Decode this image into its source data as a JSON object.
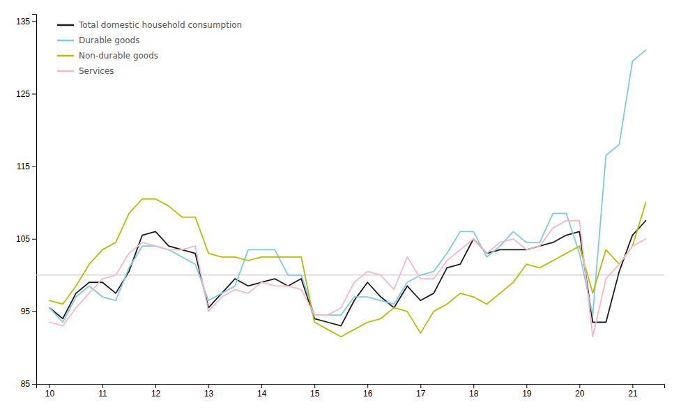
{
  "chart_data": {
    "type": "line",
    "x": [
      10.0,
      10.25,
      10.5,
      10.75,
      11.0,
      11.25,
      11.5,
      11.75,
      12.0,
      12.25,
      12.5,
      12.75,
      13.0,
      13.25,
      13.5,
      13.75,
      14.0,
      14.25,
      14.5,
      14.75,
      15.0,
      15.25,
      15.5,
      15.75,
      16.0,
      16.25,
      16.5,
      16.75,
      17.0,
      17.25,
      17.5,
      17.75,
      18.0,
      18.25,
      18.5,
      18.75,
      19.0,
      19.25,
      19.5,
      19.75,
      20.0,
      20.25,
      20.5,
      20.75,
      21.0,
      21.25
    ],
    "series": [
      {
        "name": "Total domestic household consumption",
        "color": "#1a1a1a",
        "values": [
          95.5,
          94.0,
          97.5,
          99.0,
          99.0,
          97.5,
          100.5,
          105.5,
          106.0,
          104.0,
          103.5,
          103.0,
          95.5,
          97.5,
          99.5,
          98.5,
          99.0,
          99.5,
          98.5,
          99.5,
          94.0,
          93.5,
          93.0,
          96.5,
          99.0,
          97.0,
          95.5,
          98.5,
          96.5,
          97.5,
          101.0,
          101.5,
          105.0,
          103.0,
          103.5,
          103.5,
          103.5,
          104.0,
          104.5,
          105.5,
          106.0,
          93.5,
          93.5,
          100.5,
          105.5,
          107.5
        ]
      },
      {
        "name": "Durable goods",
        "color": "#7ec8e3",
        "values": [
          95.5,
          93.5,
          97.0,
          98.5,
          97.0,
          96.5,
          101.0,
          104.0,
          104.0,
          103.5,
          102.5,
          101.5,
          96.5,
          97.5,
          98.5,
          103.5,
          103.5,
          103.5,
          100.0,
          100.0,
          94.5,
          94.5,
          94.5,
          97.0,
          97.0,
          96.5,
          96.0,
          99.0,
          100.0,
          100.5,
          103.0,
          106.0,
          106.0,
          102.5,
          104.0,
          106.0,
          104.5,
          104.5,
          108.5,
          108.5,
          103.0,
          94.5,
          116.5,
          118.0,
          129.5,
          131.0
        ]
      },
      {
        "name": "Non-durable goods",
        "color": "#b5bd00",
        "values": [
          96.5,
          96.0,
          98.5,
          101.5,
          103.5,
          104.5,
          108.5,
          110.5,
          110.5,
          109.5,
          108.0,
          108.0,
          103.0,
          102.5,
          102.5,
          102.0,
          102.5,
          102.5,
          102.5,
          102.5,
          93.5,
          92.5,
          91.5,
          92.5,
          93.5,
          94.0,
          95.5,
          95.0,
          92.0,
          95.0,
          96.0,
          97.5,
          97.0,
          96.0,
          97.5,
          99.0,
          101.5,
          101.0,
          102.0,
          103.0,
          104.0,
          97.5,
          103.5,
          101.5,
          104.0,
          110.0
        ]
      },
      {
        "name": "Services",
        "color": "#f4b8c8",
        "values": [
          93.5,
          93.0,
          95.5,
          97.5,
          99.5,
          100.0,
          103.0,
          104.5,
          104.0,
          103.5,
          103.5,
          104.0,
          95.0,
          97.0,
          98.0,
          97.5,
          99.0,
          98.5,
          98.5,
          98.0,
          94.5,
          94.5,
          95.5,
          99.0,
          100.5,
          100.0,
          98.0,
          102.5,
          99.5,
          99.5,
          102.0,
          103.5,
          105.0,
          103.0,
          104.5,
          105.0,
          103.5,
          104.0,
          106.5,
          107.5,
          107.5,
          91.5,
          99.5,
          101.5,
          104.0,
          105.0
        ]
      }
    ],
    "reference_line": {
      "y": 100,
      "color": "#bbbbbb"
    },
    "xlim": [
      9.75,
      21.6
    ],
    "ylim": [
      85,
      136
    ],
    "xticks": [
      10,
      11,
      12,
      13,
      14,
      15,
      16,
      17,
      18,
      19,
      20,
      21
    ],
    "yticks": [
      85,
      95,
      105,
      115,
      125,
      135
    ],
    "grid": false,
    "legend": "upper left"
  }
}
